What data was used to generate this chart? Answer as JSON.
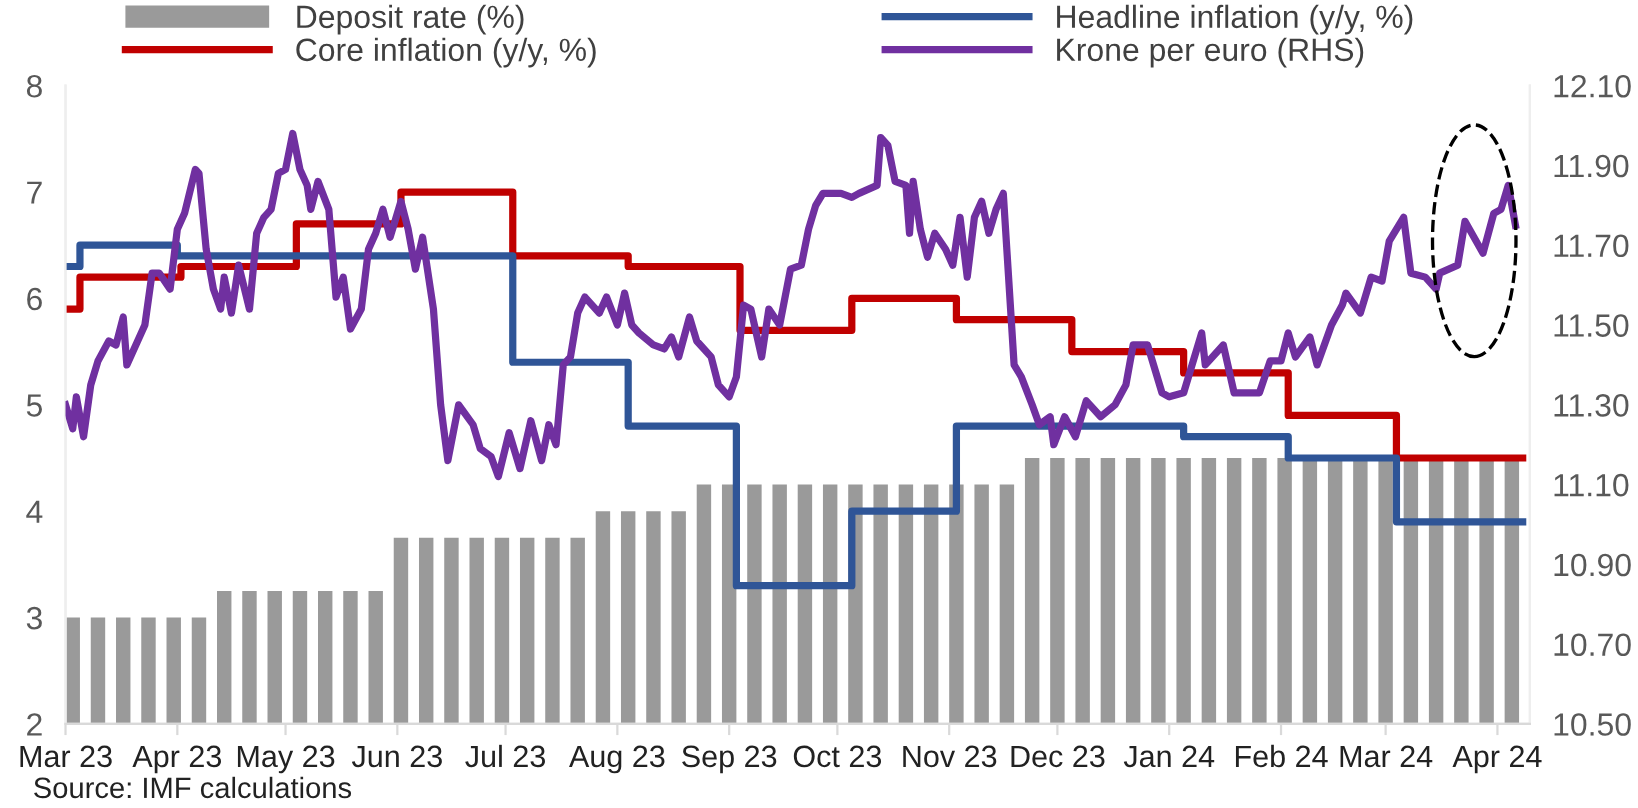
{
  "chart_data": {
    "type": "bar",
    "annotations": [
      "Source: IMF calculations"
    ],
    "legend": "top",
    "xlim": [
      "2023-03-01",
      "2024-04-10"
    ],
    "xticks": [
      {
        "value": "2023-03-01",
        "label": "Mar 23"
      },
      {
        "value": "2023-04-01",
        "label": "Apr 23"
      },
      {
        "value": "2023-05-01",
        "label": "May 23"
      },
      {
        "value": "2023-06-01",
        "label": "Jun 23"
      },
      {
        "value": "2023-07-01",
        "label": "Jul 23"
      },
      {
        "value": "2023-08-01",
        "label": "Aug 23"
      },
      {
        "value": "2023-09-01",
        "label": "Sep 23"
      },
      {
        "value": "2023-10-01",
        "label": "Oct 23"
      },
      {
        "value": "2023-11-01",
        "label": "Nov 23"
      },
      {
        "value": "2023-12-01",
        "label": "Dec 23"
      },
      {
        "value": "2024-01-01",
        "label": "Jan 24"
      },
      {
        "value": "2024-02-01",
        "label": "Feb 24"
      },
      {
        "value": "2024-03-01",
        "label": "Mar 24"
      },
      {
        "value": "2024-04-01",
        "label": "Apr 24"
      }
    ],
    "ylim": [
      2,
      8
    ],
    "yticks": [
      2,
      3,
      4,
      5,
      6,
      7,
      8
    ],
    "y2lim": [
      10.5,
      12.1
    ],
    "y2ticks": [
      {
        "value": 10.5,
        "label": "10.50"
      },
      {
        "value": 10.7,
        "label": "10.70"
      },
      {
        "value": 10.9,
        "label": "10.90"
      },
      {
        "value": 11.1,
        "label": "11.10"
      },
      {
        "value": 11.3,
        "label": "11.30"
      },
      {
        "value": 11.5,
        "label": "11.50"
      },
      {
        "value": 11.7,
        "label": "11.70"
      },
      {
        "value": 11.9,
        "label": "11.90"
      },
      {
        "value": 12.1,
        "label": "12.10"
      }
    ],
    "series": [
      {
        "name": "Deposit rate (%)",
        "color": "#9a9a9a",
        "x": [
          "2023-03-03",
          "2023-03-10",
          "2023-03-17",
          "2023-03-24",
          "2023-03-31",
          "2023-04-07",
          "2023-04-14",
          "2023-04-21",
          "2023-04-28",
          "2023-05-05",
          "2023-05-12",
          "2023-05-19",
          "2023-05-26",
          "2023-06-02",
          "2023-06-09",
          "2023-06-16",
          "2023-06-23",
          "2023-06-30",
          "2023-07-07",
          "2023-07-14",
          "2023-07-21",
          "2023-07-28",
          "2023-08-04",
          "2023-08-11",
          "2023-08-18",
          "2023-08-25",
          "2023-09-01",
          "2023-09-08",
          "2023-09-15",
          "2023-09-22",
          "2023-09-29",
          "2023-10-06",
          "2023-10-13",
          "2023-10-20",
          "2023-10-27",
          "2023-11-03",
          "2023-11-10",
          "2023-11-17",
          "2023-11-24",
          "2023-12-01",
          "2023-12-08",
          "2023-12-15",
          "2023-12-22",
          "2023-12-29",
          "2024-01-05",
          "2024-01-12",
          "2024-01-19",
          "2024-01-26",
          "2024-02-02",
          "2024-02-09",
          "2024-02-16",
          "2024-02-23",
          "2024-03-01",
          "2024-03-08",
          "2024-03-15",
          "2024-03-22",
          "2024-03-29",
          "2024-04-05"
        ],
        "values": [
          3.0,
          3.0,
          3.0,
          3.0,
          3.0,
          3.0,
          3.25,
          3.25,
          3.25,
          3.25,
          3.25,
          3.25,
          3.25,
          3.75,
          3.75,
          3.75,
          3.75,
          3.75,
          3.75,
          3.75,
          3.75,
          4.0,
          4.0,
          4.0,
          4.0,
          4.25,
          4.25,
          4.25,
          4.25,
          4.25,
          4.25,
          4.25,
          4.25,
          4.25,
          4.25,
          4.25,
          4.25,
          4.25,
          4.5,
          4.5,
          4.5,
          4.5,
          4.5,
          4.5,
          4.5,
          4.5,
          4.5,
          4.5,
          4.5,
          4.5,
          4.5,
          4.5,
          4.5,
          4.5,
          4.5,
          4.5,
          4.5,
          4.5
        ]
      },
      {
        "name": "Core inflation (y/y, %)",
        "type": "step",
        "color": "#c00000",
        "x": [
          "2023-03-01",
          "2023-03-05",
          "2023-04-02",
          "2023-05-04",
          "2023-06-02",
          "2023-07-03",
          "2023-08-04",
          "2023-09-04",
          "2023-10-05",
          "2023-11-03",
          "2023-12-05",
          "2024-01-05",
          "2024-02-03",
          "2024-03-04",
          "2024-04-08"
        ],
        "values": [
          5.9,
          6.2,
          6.3,
          6.7,
          7.0,
          6.4,
          6.3,
          5.7,
          6.0,
          5.8,
          5.5,
          5.3,
          4.9,
          4.5,
          4.5
        ]
      },
      {
        "name": "Headline inflation (y/y, %)",
        "type": "step",
        "color": "#2f5597",
        "x": [
          "2023-03-01",
          "2023-03-05",
          "2023-04-01",
          "2023-07-03",
          "2023-08-04",
          "2023-09-03",
          "2023-10-05",
          "2023-11-03",
          "2024-01-05",
          "2024-02-03",
          "2024-03-04",
          "2024-04-08"
        ],
        "values": [
          6.3,
          6.5,
          6.4,
          5.4,
          4.8,
          3.3,
          4.0,
          4.8,
          4.7,
          4.5,
          3.9,
          3.9
        ]
      },
      {
        "name": "Krone per euro (RHS)",
        "type": "line",
        "axis": "y2",
        "color": "#7030a0",
        "x": [
          "2023-03-01",
          "2023-03-03",
          "2023-03-04",
          "2023-03-06",
          "2023-03-08",
          "2023-03-10",
          "2023-03-13",
          "2023-03-15",
          "2023-03-17",
          "2023-03-18",
          "2023-03-20",
          "2023-03-23",
          "2023-03-25",
          "2023-03-27",
          "2023-03-30",
          "2023-04-01",
          "2023-04-03",
          "2023-04-06",
          "2023-04-07",
          "2023-04-09",
          "2023-04-11",
          "2023-04-13",
          "2023-04-14",
          "2023-04-16",
          "2023-04-18",
          "2023-04-21",
          "2023-04-23",
          "2023-04-25",
          "2023-04-27",
          "2023-04-29",
          "2023-05-01",
          "2023-05-03",
          "2023-05-05",
          "2023-05-07",
          "2023-05-08",
          "2023-05-10",
          "2023-05-13",
          "2023-05-15",
          "2023-05-17",
          "2023-05-19",
          "2023-05-22",
          "2023-05-24",
          "2023-05-26",
          "2023-05-28",
          "2023-05-30",
          "2023-06-02",
          "2023-06-04",
          "2023-06-06",
          "2023-06-08",
          "2023-06-11",
          "2023-06-13",
          "2023-06-15",
          "2023-06-18",
          "2023-06-22",
          "2023-06-24",
          "2023-06-27",
          "2023-06-29",
          "2023-07-02",
          "2023-07-05",
          "2023-07-08",
          "2023-07-11",
          "2023-07-13",
          "2023-07-15",
          "2023-07-17",
          "2023-07-19",
          "2023-07-21",
          "2023-07-23",
          "2023-07-27",
          "2023-07-29",
          "2023-08-01",
          "2023-08-03",
          "2023-08-05",
          "2023-08-07",
          "2023-08-11",
          "2023-08-14",
          "2023-08-16",
          "2023-08-18",
          "2023-08-21",
          "2023-08-23",
          "2023-08-27",
          "2023-08-29",
          "2023-09-01",
          "2023-09-03",
          "2023-09-05",
          "2023-09-07",
          "2023-09-10",
          "2023-09-12",
          "2023-09-15",
          "2023-09-18",
          "2023-09-21",
          "2023-09-23",
          "2023-09-25",
          "2023-09-27",
          "2023-10-02",
          "2023-10-05",
          "2023-10-07",
          "2023-10-12",
          "2023-10-13",
          "2023-10-15",
          "2023-10-17",
          "2023-10-20",
          "2023-10-21",
          "2023-10-22",
          "2023-10-24",
          "2023-10-26",
          "2023-10-28",
          "2023-10-31",
          "2023-11-02",
          "2023-11-04",
          "2023-11-06",
          "2023-11-08",
          "2023-11-10",
          "2023-11-12",
          "2023-11-14",
          "2023-11-16",
          "2023-11-19",
          "2023-11-21",
          "2023-11-24",
          "2023-11-26",
          "2023-11-29",
          "2023-11-30",
          "2023-12-03",
          "2023-12-06",
          "2023-12-09",
          "2023-12-13",
          "2023-12-17",
          "2023-12-20",
          "2023-12-22",
          "2023-12-26",
          "2023-12-30",
          "2024-01-01",
          "2024-01-05",
          "2024-01-10",
          "2024-01-11",
          "2024-01-16",
          "2024-01-19",
          "2024-01-26",
          "2024-01-29",
          "2024-02-01",
          "2024-02-03",
          "2024-02-05",
          "2024-02-09",
          "2024-02-11",
          "2024-02-15",
          "2024-02-18",
          "2024-02-19",
          "2024-02-23",
          "2024-02-26",
          "2024-02-29",
          "2024-03-02",
          "2024-03-06",
          "2024-03-08",
          "2024-03-12",
          "2024-03-15",
          "2024-03-16",
          "2024-03-21",
          "2024-03-23",
          "2024-03-28",
          "2024-03-31",
          "2024-04-02",
          "2024-04-04",
          "2024-04-06"
        ],
        "values": [
          11.3,
          11.24,
          11.32,
          11.22,
          11.35,
          11.41,
          11.46,
          11.45,
          11.52,
          11.4,
          11.44,
          11.5,
          11.63,
          11.63,
          11.59,
          11.74,
          11.78,
          11.89,
          11.88,
          11.69,
          11.59,
          11.54,
          11.62,
          11.53,
          11.65,
          11.54,
          11.73,
          11.77,
          11.79,
          11.88,
          11.89,
          11.98,
          11.89,
          11.85,
          11.79,
          11.86,
          11.79,
          11.57,
          11.62,
          11.49,
          11.54,
          11.69,
          11.73,
          11.79,
          11.72,
          11.81,
          11.74,
          11.64,
          11.72,
          11.54,
          11.3,
          11.16,
          11.3,
          11.25,
          11.19,
          11.17,
          11.12,
          11.23,
          11.14,
          11.26,
          11.16,
          11.25,
          11.2,
          11.4,
          11.42,
          11.53,
          11.57,
          11.53,
          11.57,
          11.5,
          11.58,
          11.5,
          11.48,
          11.45,
          11.44,
          11.47,
          11.42,
          11.52,
          11.46,
          11.42,
          11.35,
          11.32,
          11.37,
          11.55,
          11.54,
          11.42,
          11.54,
          11.5,
          11.64,
          11.65,
          11.74,
          11.8,
          11.83,
          11.83,
          11.82,
          11.83,
          11.85,
          11.97,
          11.95,
          11.86,
          11.85,
          11.73,
          11.86,
          11.74,
          11.67,
          11.73,
          11.69,
          11.65,
          11.77,
          11.62,
          11.77,
          11.81,
          11.73,
          11.79,
          11.83,
          11.4,
          11.37,
          11.3,
          11.25,
          11.27,
          11.2,
          11.27,
          11.22,
          11.31,
          11.27,
          11.3,
          11.35,
          11.45,
          11.45,
          11.33,
          11.32,
          11.33,
          11.48,
          11.4,
          11.45,
          11.33,
          11.33,
          11.41,
          11.41,
          11.48,
          11.42,
          11.47,
          11.4,
          11.5,
          11.55,
          11.58,
          11.53,
          11.62,
          11.61,
          11.71,
          11.77,
          11.63,
          11.62,
          11.59,
          11.63,
          11.65,
          11.76,
          11.68,
          11.78,
          11.79,
          11.85,
          11.75
        ]
      }
    ]
  }
}
